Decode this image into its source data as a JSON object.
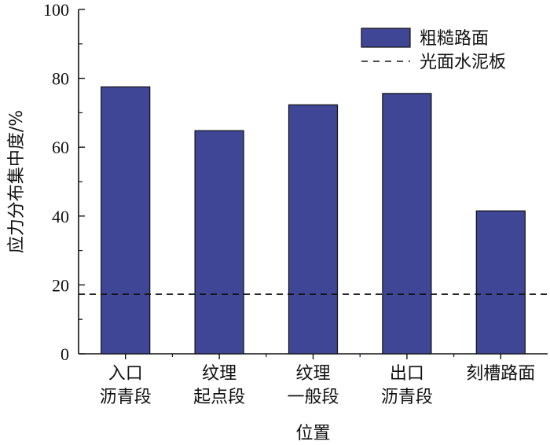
{
  "chart_data": {
    "type": "bar",
    "categories": [
      [
        "入口",
        "沥青段"
      ],
      [
        "纹理",
        "起点段"
      ],
      [
        "纹理",
        "一般段"
      ],
      [
        "出口",
        "沥青段"
      ],
      [
        "刻槽路面"
      ]
    ],
    "series": [
      {
        "name": "粗糙路面",
        "values": [
          77.5,
          64.8,
          72.3,
          75.6,
          41.5
        ],
        "color": "#3f4696"
      }
    ],
    "reference_lines": [
      {
        "name": "光面水泥板",
        "value": 17.3,
        "style": "dashed",
        "color": "#111111"
      }
    ],
    "xlabel": "位置",
    "ylabel": "应力分布集中度/%",
    "ylim": [
      0,
      100
    ],
    "yticks": [
      0,
      20,
      40,
      60,
      80,
      100
    ],
    "grid": false,
    "legend_position": "top-right"
  }
}
